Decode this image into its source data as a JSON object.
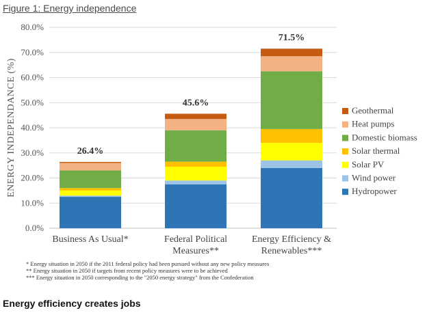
{
  "figure_title": "Figure 1: Energy independence",
  "chart_data": {
    "type": "bar",
    "stacked": true,
    "ylabel": "ENERGY INDEPENDANCE (%)",
    "ylim": [
      0,
      80
    ],
    "yticks": [
      "0.0%",
      "10.0%",
      "20.0%",
      "30.0%",
      "40.0%",
      "50.0%",
      "60.0%",
      "70.0%",
      "80.0%"
    ],
    "ytick_values": [
      0,
      10,
      20,
      30,
      40,
      50,
      60,
      70,
      80
    ],
    "grid": true,
    "legend_position": "right",
    "categories": [
      "Business As Usual*",
      "Federal Political Measures**",
      "Energy Efficiency & Renewables***"
    ],
    "category_lines": [
      [
        "Business As Usual*"
      ],
      [
        "Federal Political",
        "Measures**"
      ],
      [
        "Energy Efficiency &",
        "Renewables***"
      ]
    ],
    "totals": [
      "26.4%",
      "45.6%",
      "71.5%"
    ],
    "total_values": [
      26.4,
      45.6,
      71.5
    ],
    "series": [
      {
        "name": "Hydropower",
        "color": "#2E75B6",
        "values": [
          12.5,
          17.5,
          24.0
        ]
      },
      {
        "name": "Wind power",
        "color": "#9DC3E6",
        "values": [
          0.5,
          1.5,
          3.0
        ]
      },
      {
        "name": "Solar PV",
        "color": "#FFFF00",
        "values": [
          2.0,
          5.5,
          7.0
        ]
      },
      {
        "name": "Solar thermal",
        "color": "#FFC000",
        "values": [
          1.0,
          2.0,
          5.5
        ]
      },
      {
        "name": "Domestic biomass",
        "color": "#70AD47",
        "values": [
          7.0,
          12.5,
          23.0
        ]
      },
      {
        "name": "Heat pumps",
        "color": "#F4B183",
        "values": [
          3.0,
          4.5,
          6.0
        ]
      },
      {
        "name": "Geothermal",
        "color": "#C55A11",
        "values": [
          0.4,
          2.1,
          3.0
        ]
      }
    ]
  },
  "notes": [
    "* Energy situation in 2050 if the 2011 federal policy had been pursued without any new policy measures",
    "** Energy situation in 2050 if targets from recent policy measures were to be achieved",
    "*** Energy situation in 2050 corresponding to the \"2050 energy strategy\" from the Confederation"
  ],
  "footer_heading": "Energy efficiency creates jobs"
}
